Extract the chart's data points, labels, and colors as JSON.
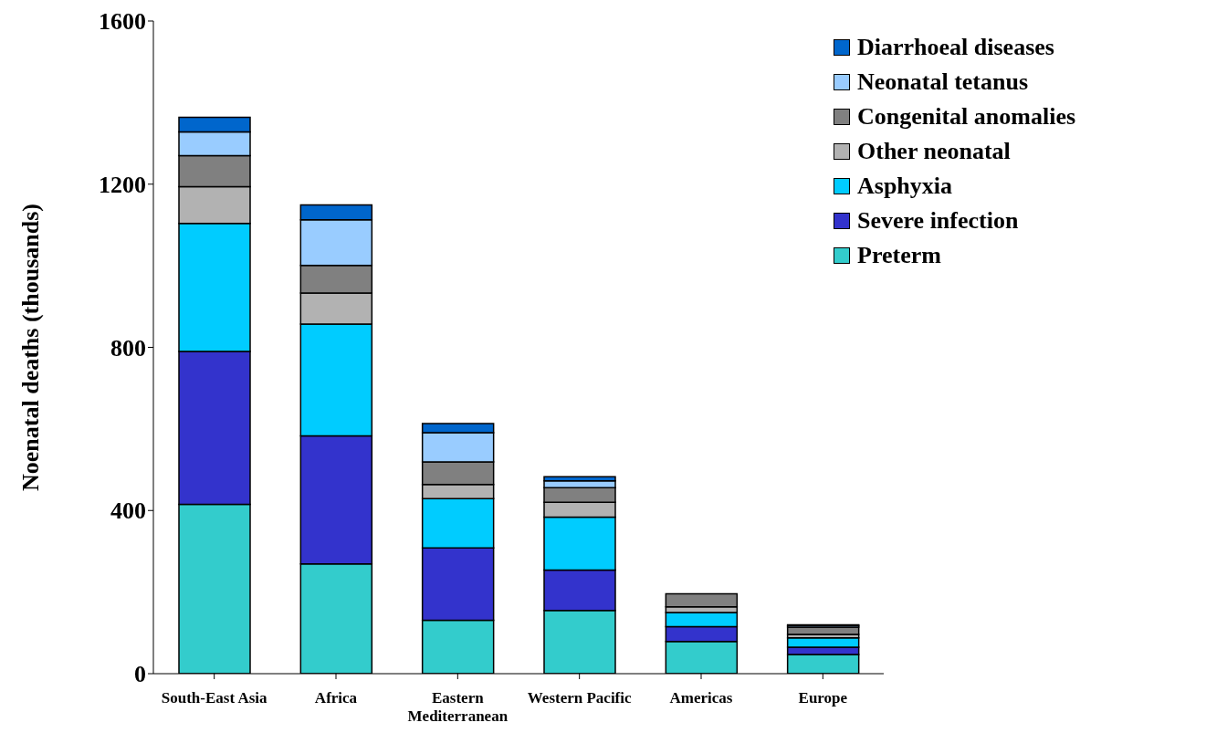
{
  "chart_data": {
    "type": "bar",
    "stacked": true,
    "ylabel": "Noenatal deaths (thousands)",
    "categories": [
      "South-East Asia",
      "Africa",
      "Eastern Mediterranean",
      "Western Pacific",
      "Americas",
      "Europe"
    ],
    "series": [
      {
        "name": "Preterm",
        "color": "#33cccc",
        "values": [
          415,
          269,
          131,
          155,
          79,
          47
        ]
      },
      {
        "name": "Severe infection",
        "color": "#3333cc",
        "values": [
          375,
          314,
          177,
          99,
          36,
          18
        ]
      },
      {
        "name": "Asphyxia",
        "color": "#00ccff",
        "values": [
          314,
          274,
          121,
          130,
          35,
          23
        ]
      },
      {
        "name": "Other neonatal",
        "color": "#b2b2b2",
        "values": [
          90,
          76,
          35,
          36,
          14,
          8
        ]
      },
      {
        "name": "Congenital anomalies",
        "color": "#808080",
        "values": [
          76,
          68,
          55,
          36,
          32,
          18
        ]
      },
      {
        "name": "Neonatal tetanus",
        "color": "#99ccff",
        "values": [
          58,
          112,
          72,
          17,
          0,
          4
        ]
      },
      {
        "name": "Diarrhoeal diseases",
        "color": "#0066cc",
        "values": [
          36,
          36,
          22,
          10,
          0,
          2
        ]
      }
    ],
    "ylim": [
      0,
      1600
    ],
    "yticks": [
      0,
      400,
      800,
      1200,
      1600
    ],
    "grid": false,
    "legend": "top right"
  }
}
